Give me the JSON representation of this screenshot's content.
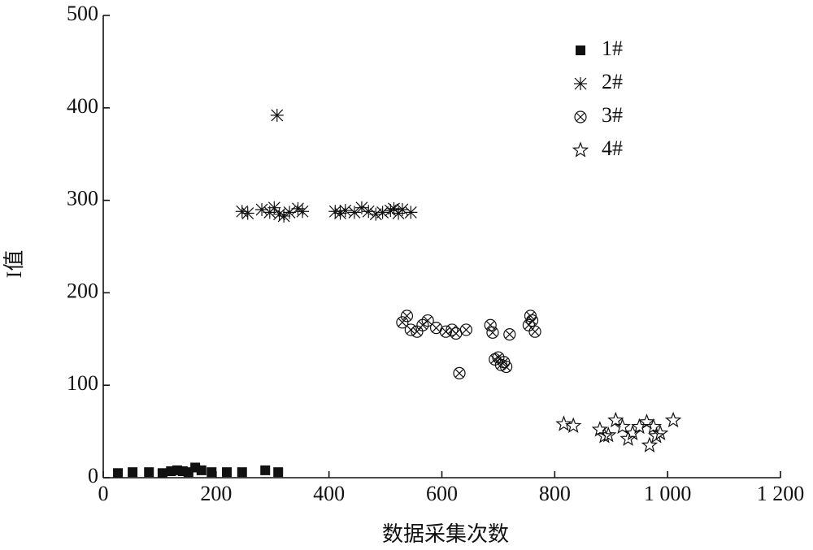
{
  "chart_data": {
    "type": "scatter",
    "xlabel": "数据采集次数",
    "ylabel": "I值",
    "xlim": [
      0,
      1200
    ],
    "xticks": [
      0,
      200,
      400,
      600,
      800,
      {
        "value": 1000,
        "label": "1 000"
      },
      {
        "value": 1200,
        "label": "1 200"
      }
    ],
    "ylim": [
      0,
      500
    ],
    "yticks": [
      0,
      100,
      200,
      300,
      400,
      500
    ],
    "legend": "top-right",
    "series": [
      {
        "name": "1#",
        "color": "#111111",
        "marker": "square",
        "x": [
          26,
          52,
          81,
          105,
          120,
          131,
          141,
          151,
          163,
          174,
          192,
          219,
          246,
          287,
          310
        ],
        "y": [
          5,
          6,
          6,
          5,
          7,
          8,
          7,
          6,
          11,
          8,
          6,
          6,
          6,
          8,
          6
        ]
      },
      {
        "name": "2#",
        "color": "#111111",
        "marker": "asterisk",
        "x": [
          246,
          256,
          281,
          295,
          303,
          308,
          312,
          320,
          330,
          345,
          353,
          411,
          420,
          429,
          445,
          458,
          470,
          483,
          495,
          509,
          515,
          523,
          530,
          545
        ],
        "y": [
          288,
          286,
          290,
          287,
          292,
          392,
          285,
          283,
          287,
          291,
          288,
          288,
          286,
          289,
          287,
          292,
          288,
          285,
          287,
          289,
          291,
          286,
          290,
          287
        ]
      },
      {
        "name": "3#",
        "color": "#111111",
        "marker": "circle-x",
        "x": [
          530,
          538,
          545,
          556,
          566,
          575,
          590,
          607,
          618,
          625,
          631,
          643,
          686,
          690,
          694,
          700,
          705,
          710,
          714,
          720,
          754,
          757,
          760,
          765
        ],
        "y": [
          168,
          175,
          160,
          158,
          165,
          170,
          162,
          158,
          160,
          156,
          113,
          160,
          165,
          157,
          128,
          130,
          122,
          125,
          120,
          155,
          165,
          175,
          170,
          158
        ]
      },
      {
        "name": "4#",
        "color": "#111111",
        "marker": "star",
        "x": [
          816,
          833,
          880,
          888,
          895,
          908,
          920,
          930,
          938,
          950,
          963,
          968,
          975,
          980,
          987,
          1010
        ],
        "y": [
          58,
          56,
          52,
          45,
          46,
          62,
          55,
          42,
          48,
          55,
          60,
          35,
          55,
          45,
          48,
          62
        ]
      }
    ]
  }
}
